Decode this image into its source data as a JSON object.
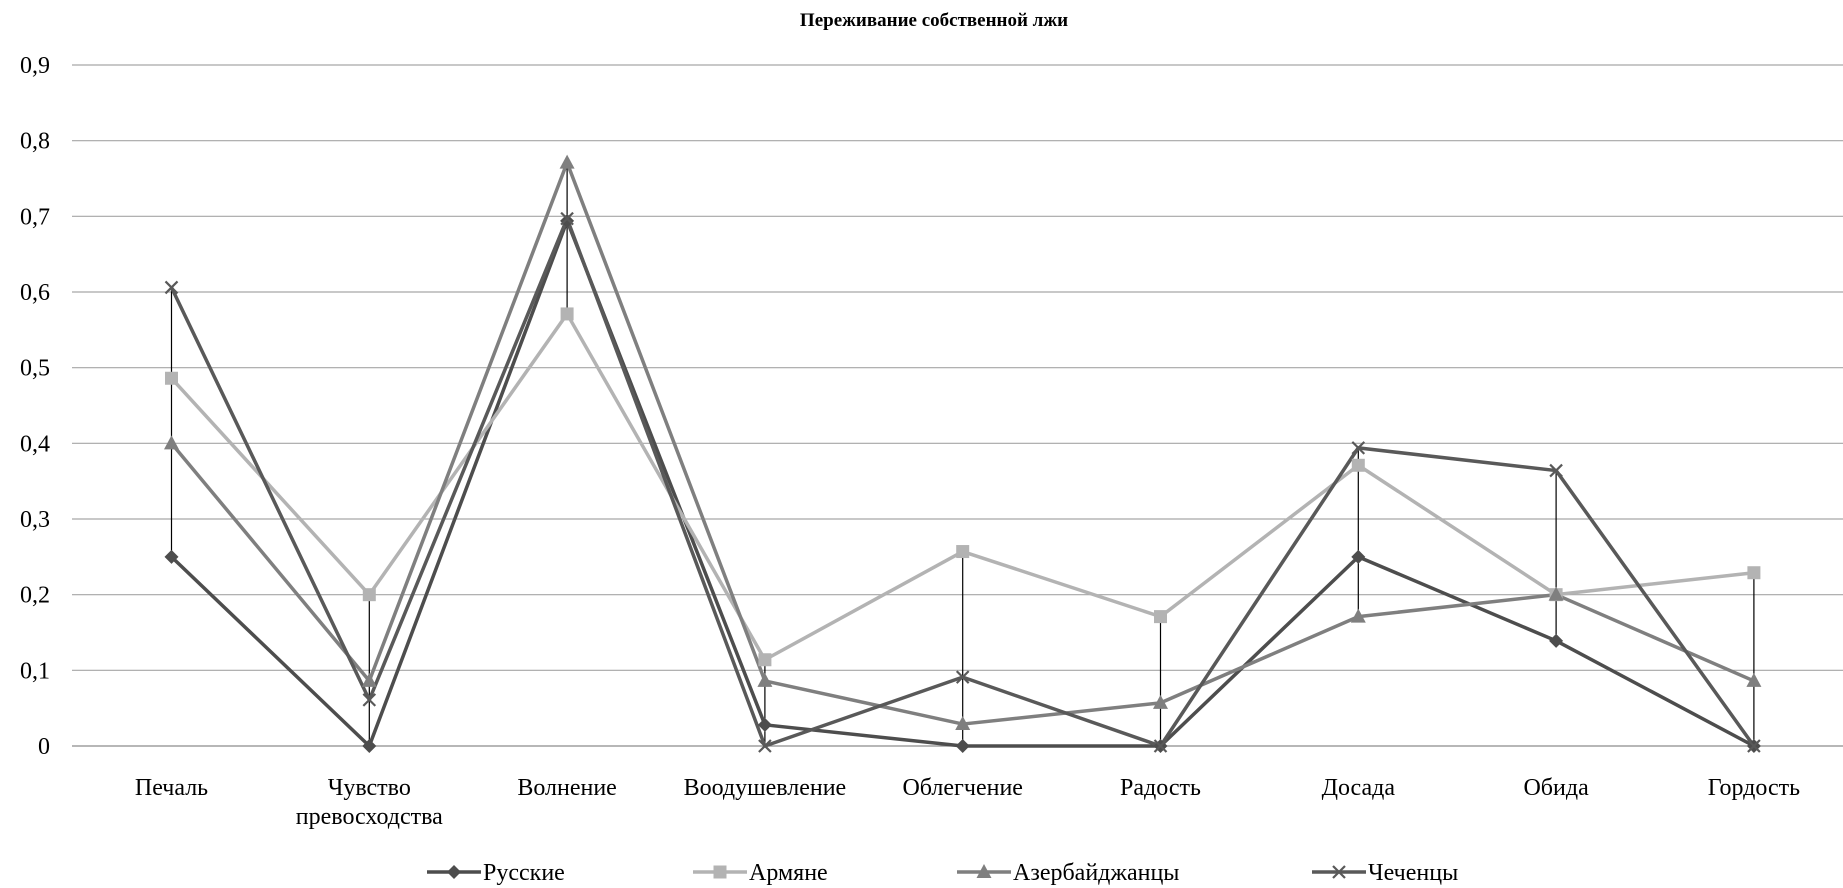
{
  "chart_data": {
    "type": "line",
    "title": "Переживание собственной лжи",
    "xlabel": "",
    "ylabel": "",
    "ylim": [
      0,
      0.9
    ],
    "yticks": [
      "0",
      "0,1",
      "0,2",
      "0,3",
      "0,4",
      "0,5",
      "0,6",
      "0,7",
      "0,8",
      "0,9"
    ],
    "categories": [
      [
        "Печаль"
      ],
      [
        "Чувство",
        "превосходства"
      ],
      [
        "Волнение"
      ],
      [
        "Воодушевление"
      ],
      [
        "Облегчение"
      ],
      [
        "Радость"
      ],
      [
        "Досада"
      ],
      [
        "Обида"
      ],
      [
        "Гордость"
      ]
    ],
    "grid": true,
    "high_low_lines": true,
    "legend_position": "bottom",
    "series": [
      {
        "name": "Русские",
        "color": "#4d4d4d",
        "marker": "diamond",
        "values": [
          0.25,
          0.0,
          0.694,
          0.028,
          0.0,
          0.0,
          0.25,
          0.139,
          0.0
        ]
      },
      {
        "name": "Армяне",
        "color": "#b3b3b3",
        "marker": "square",
        "values": [
          0.486,
          0.2,
          0.571,
          0.114,
          0.257,
          0.171,
          0.371,
          0.2,
          0.229
        ]
      },
      {
        "name": "Азербайджанцы",
        "color": "#7f7f7f",
        "marker": "triangle",
        "values": [
          0.4,
          0.086,
          0.771,
          0.086,
          0.029,
          0.057,
          0.171,
          0.2,
          0.086
        ]
      },
      {
        "name": "Чеченцы",
        "color": "#595959",
        "marker": "x",
        "values": [
          0.606,
          0.061,
          0.697,
          0.0,
          0.091,
          0.0,
          0.394,
          0.364,
          0.0
        ]
      }
    ]
  }
}
